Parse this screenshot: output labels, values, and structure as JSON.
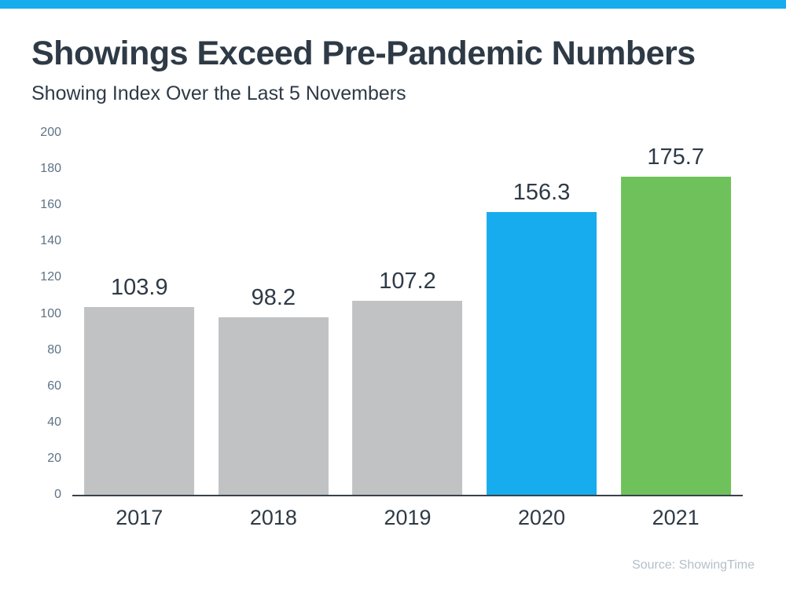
{
  "header": {
    "title": "Showings Exceed Pre-Pandemic Numbers",
    "subtitle": "Showing Index Over the Last 5 Novembers"
  },
  "footer": {
    "source": "Source: ShowingTime"
  },
  "colors": {
    "accent_strip": "#17aced",
    "title_text": "#2e3a46",
    "tick_label": "#5e7286",
    "axis_line": "#39424c",
    "bar_gray": "#c1c2c4",
    "bar_blue": "#17aced",
    "bar_green": "#6fc25b",
    "data_label_text": "#2e3a46",
    "x_label_text": "#2e3a46",
    "source_text": "#b3bfc9",
    "background": "#ffffff"
  },
  "chart_data": {
    "type": "bar",
    "title": "Showings Exceed Pre-Pandemic Numbers",
    "subtitle": "Showing Index Over the Last 5 Novembers",
    "categories": [
      "2017",
      "2018",
      "2019",
      "2020",
      "2021"
    ],
    "values": [
      103.9,
      98.2,
      107.2,
      156.3,
      175.7
    ],
    "data_labels": [
      "103.9",
      "98.2",
      "107.2",
      "156.3",
      "175.7"
    ],
    "bar_colors": [
      "#c1c2c4",
      "#c1c2c4",
      "#c1c2c4",
      "#17aced",
      "#6fc25b"
    ],
    "xlabel": "",
    "ylabel": "",
    "ylim": [
      0,
      200
    ],
    "yticks": [
      0,
      20,
      40,
      60,
      80,
      100,
      120,
      140,
      160,
      180,
      200
    ],
    "grid": false,
    "legend": false,
    "source": "Source: ShowingTime"
  }
}
